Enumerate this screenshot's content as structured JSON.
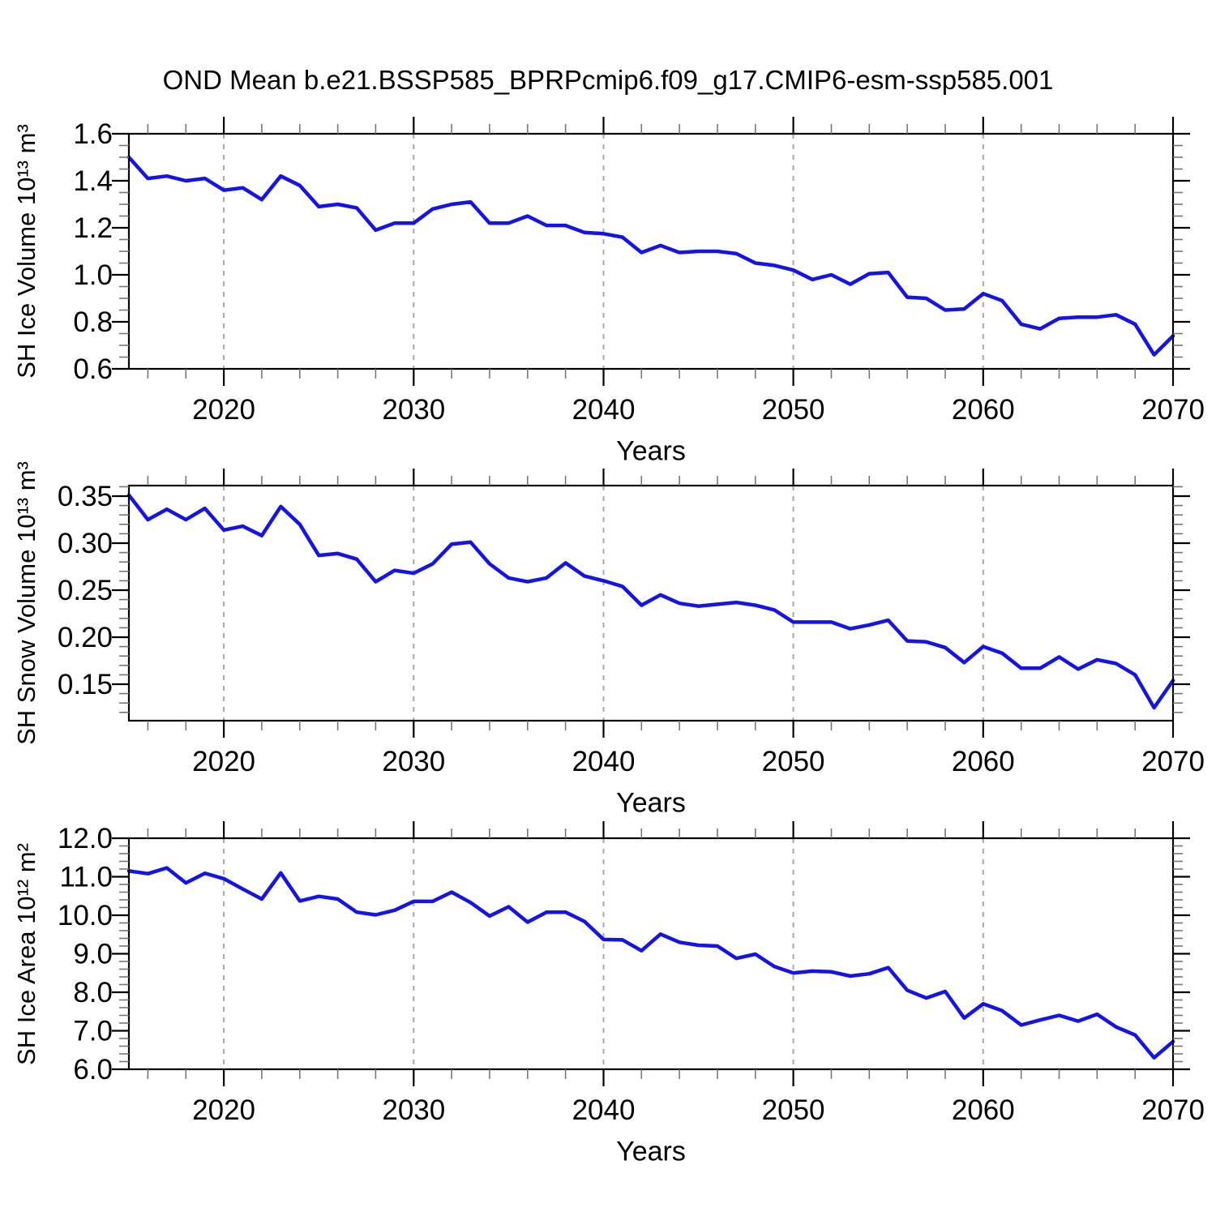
{
  "title": "OND Mean b.e21.BSSP585_BPRPcmip6.f09_g17.CMIP6-esm-ssp585.001",
  "chart_data": {
    "type": "line",
    "x_label": "Years",
    "line_color": "#1414e6",
    "grid_color": "#a8a8a8",
    "grid": "vertical-dashed",
    "x_years": [
      2015,
      2016,
      2017,
      2018,
      2019,
      2020,
      2021,
      2022,
      2023,
      2024,
      2025,
      2026,
      2027,
      2028,
      2029,
      2030,
      2031,
      2032,
      2033,
      2034,
      2035,
      2036,
      2037,
      2038,
      2039,
      2040,
      2041,
      2042,
      2043,
      2044,
      2045,
      2046,
      2047,
      2048,
      2049,
      2050,
      2051,
      2052,
      2053,
      2054,
      2055,
      2056,
      2057,
      2058,
      2059,
      2060,
      2061,
      2062,
      2063,
      2064,
      2065,
      2066,
      2067,
      2068,
      2069,
      2070
    ],
    "x_axis": {
      "min": 2015,
      "max": 2070,
      "major_ticks": [
        2020,
        2030,
        2040,
        2050,
        2060,
        2070
      ],
      "minor_step": 2,
      "gridlines": [
        2020,
        2030,
        2040,
        2050,
        2060
      ]
    },
    "panels": [
      {
        "name": "sh-ice-volume",
        "ylabel": "SH Ice Volume 10¹³ m³",
        "y_axis": {
          "min": 0.6,
          "max": 1.6,
          "major_ticks": [
            1.6,
            1.4,
            1.2,
            1.0,
            0.8,
            0.6
          ],
          "major_labels": [
            "1.6",
            "1.4",
            "1.2",
            "1.0",
            "0.8",
            "0.6"
          ],
          "minor_step": 0.05
        },
        "values": [
          1.5,
          1.41,
          1.42,
          1.4,
          1.41,
          1.36,
          1.37,
          1.32,
          1.42,
          1.38,
          1.29,
          1.3,
          1.285,
          1.19,
          1.22,
          1.22,
          1.28,
          1.3,
          1.31,
          1.22,
          1.22,
          1.25,
          1.21,
          1.21,
          1.18,
          1.175,
          1.16,
          1.095,
          1.125,
          1.095,
          1.1,
          1.1,
          1.09,
          1.05,
          1.04,
          1.02,
          0.98,
          1.0,
          0.96,
          1.005,
          1.01,
          0.905,
          0.9,
          0.85,
          0.855,
          0.92,
          0.89,
          0.79,
          0.77,
          0.815,
          0.82,
          0.82,
          0.83,
          0.79,
          0.66,
          0.74
        ]
      },
      {
        "name": "sh-snow-volume",
        "ylabel": "SH Snow Volume 10¹³ m³",
        "y_axis": {
          "min": 0.1112,
          "max": 0.3612,
          "major_ticks": [
            0.35,
            0.3,
            0.25,
            0.2,
            0.15
          ],
          "major_labels": [
            "0.35",
            "0.30",
            "0.25",
            "0.20",
            "0.15"
          ],
          "minor_step": 0.01
        },
        "values": [
          0.351,
          0.325,
          0.336,
          0.325,
          0.337,
          0.314,
          0.318,
          0.308,
          0.339,
          0.32,
          0.287,
          0.289,
          0.283,
          0.259,
          0.271,
          0.268,
          0.278,
          0.299,
          0.301,
          0.278,
          0.263,
          0.259,
          0.263,
          0.279,
          0.265,
          0.26,
          0.254,
          0.234,
          0.245,
          0.236,
          0.233,
          0.235,
          0.237,
          0.234,
          0.229,
          0.216,
          0.216,
          0.216,
          0.209,
          0.213,
          0.218,
          0.196,
          0.195,
          0.189,
          0.173,
          0.19,
          0.183,
          0.167,
          0.167,
          0.179,
          0.166,
          0.176,
          0.172,
          0.16,
          0.125,
          0.154
        ]
      },
      {
        "name": "sh-ice-area",
        "ylabel": "SH Ice Area 10¹² m²",
        "y_axis": {
          "min": 6.0,
          "max": 12.0,
          "major_ticks": [
            12.0,
            11.0,
            10.0,
            9.0,
            8.0,
            7.0,
            6.0
          ],
          "major_labels": [
            "12.0",
            "11.0",
            "10.0",
            "9.0",
            "8.0",
            "7.0",
            "6.0"
          ],
          "minor_step": 0.2
        },
        "values": [
          11.15,
          11.08,
          11.23,
          10.84,
          11.09,
          10.95,
          10.68,
          10.42,
          11.1,
          10.37,
          10.49,
          10.42,
          10.08,
          10.01,
          10.13,
          10.36,
          10.36,
          10.6,
          10.33,
          9.98,
          10.22,
          9.82,
          10.08,
          10.08,
          9.84,
          9.37,
          9.36,
          9.08,
          9.51,
          9.3,
          9.22,
          9.2,
          8.88,
          8.99,
          8.67,
          8.5,
          8.55,
          8.53,
          8.42,
          8.48,
          8.64,
          8.05,
          7.85,
          8.02,
          7.33,
          7.7,
          7.52,
          7.15,
          7.28,
          7.4,
          7.25,
          7.43,
          7.1,
          6.89,
          6.3,
          6.72
        ]
      }
    ]
  }
}
